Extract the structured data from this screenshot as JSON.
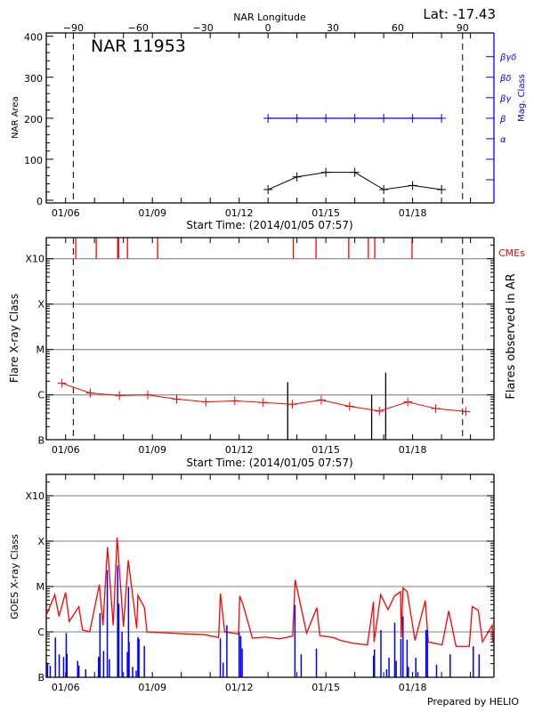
{
  "header": {
    "lat_label": "Lat: -17.43",
    "footer": "Prepared by HELIO"
  },
  "colors": {
    "area": "#000000",
    "mag_class": "#0000ff",
    "flare_class": "#ff0000",
    "cme": "#ff0000",
    "ar_flares": "#000000",
    "goes_flux": "#ff0000",
    "goes_events": "#0000ff",
    "grid": "#999999"
  },
  "chart_data": [
    {
      "type": "line",
      "title": "NAR 11953",
      "xlabel": "Start Time: (2014/01/05 07:57)",
      "ylabel": "NAR Area",
      "xlim": [
        "01/05 07:57",
        "01/20 19:30"
      ],
      "xticks": [
        "01/06",
        "01/09",
        "01/12",
        "01/15",
        "01/18"
      ],
      "ylim": [
        0,
        400
      ],
      "yticks": [
        0,
        100,
        200,
        300,
        400
      ],
      "top_axis": {
        "label": "NAR Longitude",
        "ticks": [
          -90,
          -60,
          -30,
          0,
          30,
          60,
          90
        ],
        "range": [
          -102.5,
          104.5
        ]
      },
      "limb_longitudes": [
        -90,
        90
      ],
      "right_axis": {
        "label": "Mag. Class",
        "ticks": [
          "",
          "",
          "α",
          "β",
          "βγ",
          "βδ",
          "βγδ"
        ]
      },
      "area": {
        "x": [
          "01/13 00:00",
          "01/14 00:00",
          "01/15 00:00",
          "01/16 00:00",
          "01/17 00:00",
          "01/18 00:00",
          "01/19 00:00"
        ],
        "y": [
          26,
          57,
          68,
          68,
          26,
          36,
          26
        ]
      },
      "mag_class": {
        "x": [
          "01/13 00:00",
          "01/14 00:00",
          "01/15 00:00",
          "01/16 00:00",
          "01/17 00:00",
          "01/18 00:00",
          "01/19 00:00"
        ],
        "y": [
          "β",
          "β",
          "β",
          "β",
          "β",
          "β",
          "β"
        ]
      },
      "grid": false
    },
    {
      "type": "line",
      "xlabel": "Start Time: (2014/01/05 07:57)",
      "ylabel": "Flare X-ray Class",
      "right_label": "Flares observed in AR",
      "cme_label": "CMEs",
      "xticks": [
        "01/06",
        "01/09",
        "01/12",
        "01/15",
        "01/18"
      ],
      "yticks": [
        "B",
        "C",
        "M",
        "X",
        "X10"
      ],
      "scale": "log",
      "grid": true,
      "limb_longitudes": [
        -90,
        90
      ],
      "flare_class": {
        "x": [
          "01/05 21:00",
          "01/06 20:30",
          "01/07 20:40",
          "01/08 20:10",
          "01/09 20:10",
          "01/10 20:25",
          "01/11 20:25",
          "01/12 20:00",
          "01/13 20:10",
          "01/14 20:10",
          "01/15 19:40",
          "01/16 20:25",
          "01/17 20:00",
          "01/18 19:10",
          "01/19 20:10"
        ],
        "y": [
          "C1.8",
          "C1.1",
          "B9.7",
          "C1.0",
          "B8.1",
          "B7.0",
          "B7.4",
          "B6.8",
          "B6.2",
          "B7.7",
          "B5.6",
          "B4.4",
          "B7.0",
          "B5.0",
          "B4.3"
        ]
      },
      "ar_flares": [
        [
          "01/13 16:20",
          "C1.9"
        ],
        [
          "01/16 14:00",
          "C1.0"
        ],
        [
          "01/17 01:40",
          "C3.1"
        ]
      ],
      "cmes": [
        "01/06 08:25",
        "01/07 01:25",
        "01/07 19:10",
        "01/07 20:00",
        "01/08 03:20",
        "01/09 04:20",
        "01/13 21:00",
        "01/14 15:50",
        "01/15 19:00",
        "01/16 11:15",
        "01/16 16:35",
        "01/17 23:30"
      ]
    },
    {
      "type": "line",
      "ylabel": "GOES X-ray Class",
      "xticks": [
        "01/06",
        "01/09",
        "01/12",
        "01/15",
        "01/18"
      ],
      "yticks": [
        "B",
        "C",
        "M",
        "X",
        "X10"
      ],
      "scale": "log",
      "grid": true,
      "goes_flux": [
        [
          "01/05 08:30",
          "C2.5"
        ],
        [
          "01/05 15:00",
          "C6.6"
        ],
        [
          "01/05 18:30",
          "C2.2"
        ],
        [
          "01/06 00:00",
          "C7.4"
        ],
        [
          "01/06 03:00",
          "C1.7"
        ],
        [
          "01/06 11:00",
          "C3.6"
        ],
        [
          "01/06 14:00",
          "C1.1"
        ],
        [
          "01/06 20:00",
          "C1.0"
        ],
        [
          "01/07 04:00",
          "M1.1"
        ],
        [
          "01/07 07:00",
          "C1.4"
        ],
        [
          "01/07 10:45",
          "M7.4"
        ],
        [
          "01/07 15:30",
          "C1.4"
        ],
        [
          "01/07 18:45",
          "X1.2"
        ],
        [
          "01/08 00:00",
          "C1.3"
        ],
        [
          "01/08 04:00",
          "M3.8"
        ],
        [
          "01/08 11:00",
          "C1.2"
        ],
        [
          "01/08 12:00",
          "C6.4"
        ],
        [
          "01/08 17:30",
          "C3.4"
        ],
        [
          "01/08 19:30",
          "C1.0"
        ],
        [
          "01/09 15:00",
          "B9.4"
        ],
        [
          "01/10 05:00",
          "B9.0"
        ],
        [
          "01/10 19:30",
          "B8.7"
        ],
        [
          "01/11 07:00",
          "B7.5"
        ],
        [
          "01/11 08:30",
          "C7.0"
        ],
        [
          "01/11 12:00",
          "C1.0"
        ],
        [
          "01/11 23:30",
          "B9.0"
        ],
        [
          "01/12 00:30",
          "C6.2"
        ],
        [
          "01/12 03:00",
          "C4.2"
        ],
        [
          "01/12 11:00",
          "B7.3"
        ],
        [
          "01/12 22:00",
          "B7.7"
        ],
        [
          "01/13 09:30",
          "B7.0"
        ],
        [
          "01/13 20:30",
          "B8.1"
        ],
        [
          "01/13 22:30",
          "M1.4"
        ],
        [
          "01/14 08:00",
          "B9.4"
        ],
        [
          "01/14 16:30",
          "C3.4"
        ],
        [
          "01/14 19:00",
          "B8.3"
        ],
        [
          "01/15 06:30",
          "B7.5"
        ],
        [
          "01/15 12:00",
          "B6.5"
        ],
        [
          "01/15 23:00",
          "B5.6"
        ],
        [
          "01/16 10:30",
          "B5.2"
        ],
        [
          "01/16 15:30",
          "C4.6"
        ],
        [
          "01/16 16:00",
          "B6.0"
        ],
        [
          "01/16 21:30",
          "C6.6"
        ],
        [
          "01/17 03:30",
          "C3.1"
        ],
        [
          "01/17 09:00",
          "C6.2"
        ],
        [
          "01/17 14:00",
          "C7.7"
        ],
        [
          "01/17 14:30",
          "B7.5"
        ],
        [
          "01/17 16:00",
          "C9.3"
        ],
        [
          "01/17 19:30",
          "C7.7"
        ],
        [
          "01/18 02:00",
          "B6.5"
        ],
        [
          "01/18 10:30",
          "C4.9"
        ],
        [
          "01/18 13:00",
          "B6.0"
        ],
        [
          "01/19 00:30",
          "B5.2"
        ],
        [
          "01/19 06:00",
          "C2.9"
        ],
        [
          "01/19 12:00",
          "B4.8"
        ],
        [
          "01/19 23:00",
          "B4.8"
        ],
        [
          "01/20 01:30",
          "C3.6"
        ],
        [
          "01/20 06:30",
          "C3.0"
        ],
        [
          "01/20 10:00",
          "B6.0"
        ],
        [
          "01/20 18:00",
          "C1.4"
        ],
        [
          "01/20 18:30",
          "B6.0"
        ]
      ],
      "goes_events": [
        [
          "01/05 09:00",
          "B2.1"
        ],
        [
          "01/05 11:15",
          "B1.8"
        ],
        [
          "01/05 15:30",
          "B7.5"
        ],
        [
          "01/05 18:40",
          "B3.2"
        ],
        [
          "01/05 22:20",
          "B2.8"
        ],
        [
          "01/06 00:30",
          "B9.4"
        ],
        [
          "01/06 01:10",
          "B3.3"
        ],
        [
          "01/06 10:00",
          "B2.3"
        ],
        [
          "01/06 11:00",
          "B1.8"
        ],
        [
          "01/06 16:40",
          "B1.5"
        ],
        [
          "01/07 03:20",
          "B2.8"
        ],
        [
          "01/07 04:30",
          "C2.6"
        ],
        [
          "01/07 07:30",
          "B3.8"
        ],
        [
          "01/07 10:35",
          "M2.3"
        ],
        [
          "01/07 12:20",
          "B2.5"
        ],
        [
          "01/07 19:10",
          "M2.9"
        ],
        [
          "01/07 20:10",
          "C4.2"
        ],
        [
          "01/07 22:50",
          "C1.0"
        ],
        [
          "01/08 03:15",
          "B3.6"
        ],
        [
          "01/08 04:10",
          "C9.7"
        ],
        [
          "01/08 04:40",
          "B6.0"
        ],
        [
          "01/08 07:40",
          "B1.7"
        ],
        [
          "01/08 10:35",
          "B1.4"
        ],
        [
          "01/08 12:00",
          "B7.7"
        ],
        [
          "01/08 12:50",
          "B7.0"
        ],
        [
          "01/08 17:20",
          "B4.9"
        ],
        [
          "01/11 08:25",
          "B7.2"
        ],
        [
          "01/11 10:45",
          "B2.1"
        ],
        [
          "01/11 13:50",
          "C1.4"
        ],
        [
          "01/12 00:00",
          "B9.8"
        ],
        [
          "01/12 01:20",
          "B8.1"
        ],
        [
          "01/12 02:30",
          "B4.3"
        ],
        [
          "01/13 22:20",
          "C3.9"
        ],
        [
          "01/14 03:30",
          "B3.2"
        ],
        [
          "01/14 16:10",
          "B4.3"
        ],
        [
          "01/16 15:35",
          "B3.0"
        ],
        [
          "01/16 16:20",
          "B4.1"
        ],
        [
          "01/16 21:40",
          "C1.1"
        ],
        [
          "01/17 02:25",
          "B1.5"
        ],
        [
          "01/17 04:25",
          "B2.7"
        ],
        [
          "01/17 09:10",
          "C1.6"
        ],
        [
          "01/17 10:20",
          "B2.3"
        ],
        [
          "01/17 14:15",
          "B7.0"
        ],
        [
          "01/17 16:00",
          "C2.2"
        ],
        [
          "01/17 19:25",
          "B6.7"
        ],
        [
          "01/17 20:30",
          "B1.7"
        ],
        [
          "01/18 02:40",
          "B2.7"
        ],
        [
          "01/18 04:20",
          "B1.3"
        ],
        [
          "01/18 11:05",
          "C1.1"
        ],
        [
          "01/18 12:15",
          "C1.1"
        ],
        [
          "01/18 19:50",
          "B1.9"
        ],
        [
          "01/19 07:10",
          "B3.2"
        ],
        [
          "01/20 02:20",
          "B4.8"
        ],
        [
          "01/20 07:10",
          "B3.2"
        ]
      ]
    }
  ]
}
